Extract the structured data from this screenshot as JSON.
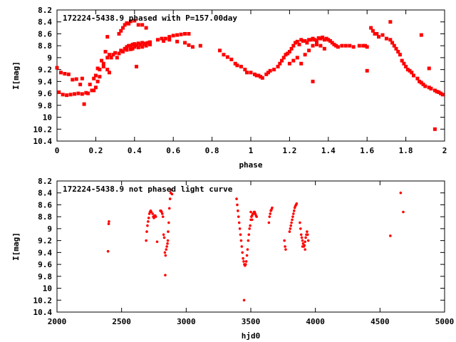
{
  "chart_data": [
    {
      "type": "scatter",
      "title": "172224-5438.9 phased with P=157.00day",
      "xlabel": "phase",
      "ylabel": "I[mag]",
      "xlim": [
        0,
        2
      ],
      "ylim": [
        10.4,
        8.2
      ],
      "y_inverted": true,
      "x_ticks": [
        0,
        0.2,
        0.4,
        0.6,
        0.8,
        1,
        1.2,
        1.4,
        1.6,
        1.8,
        2
      ],
      "x_tick_labels": [
        "0",
        "0.2",
        "0.4",
        "0.6",
        "0.8",
        "1",
        "1.2",
        "1.4",
        "1.6",
        "1.8",
        "2"
      ],
      "y_ticks": [
        8.2,
        8.4,
        8.6,
        8.8,
        9,
        9.2,
        9.4,
        9.6,
        9.8,
        10,
        10.2,
        10.4
      ],
      "y_tick_labels": [
        "8.2",
        "8.4",
        "8.6",
        "8.8",
        "9",
        "9.2",
        "9.4",
        "9.6",
        "9.8",
        "10",
        "10.2",
        "10.4"
      ],
      "marker": "square",
      "color": "#ff0000",
      "grid": false,
      "points": [
        [
          0.0,
          9.17
        ],
        [
          0.01,
          9.58
        ],
        [
          0.02,
          9.25
        ],
        [
          0.03,
          9.62
        ],
        [
          0.04,
          9.27
        ],
        [
          0.05,
          9.63
        ],
        [
          0.06,
          9.28
        ],
        [
          0.07,
          9.62
        ],
        [
          0.08,
          9.37
        ],
        [
          0.09,
          9.61
        ],
        [
          0.1,
          9.36
        ],
        [
          0.11,
          9.6
        ],
        [
          0.12,
          9.45
        ],
        [
          0.13,
          9.35
        ],
        [
          0.13,
          9.61
        ],
        [
          0.14,
          9.78
        ],
        [
          0.15,
          9.59
        ],
        [
          0.16,
          9.6
        ],
        [
          0.17,
          9.45
        ],
        [
          0.18,
          9.55
        ],
        [
          0.19,
          9.55
        ],
        [
          0.2,
          9.5
        ],
        [
          0.21,
          9.4
        ],
        [
          0.22,
          9.32
        ],
        [
          0.19,
          9.35
        ],
        [
          0.2,
          9.3
        ],
        [
          0.21,
          9.18
        ],
        [
          0.22,
          9.2
        ],
        [
          0.23,
          9.05
        ],
        [
          0.24,
          9.1
        ],
        [
          0.25,
          8.9
        ],
        [
          0.26,
          9.0
        ],
        [
          0.27,
          8.95
        ],
        [
          0.28,
          9.0
        ],
        [
          0.29,
          8.95
        ],
        [
          0.3,
          8.92
        ],
        [
          0.31,
          9.0
        ],
        [
          0.32,
          8.93
        ],
        [
          0.33,
          8.88
        ],
        [
          0.34,
          8.9
        ],
        [
          0.35,
          8.85
        ],
        [
          0.36,
          8.82
        ],
        [
          0.37,
          8.8
        ],
        [
          0.38,
          8.8
        ],
        [
          0.39,
          8.78
        ],
        [
          0.4,
          8.77
        ],
        [
          0.41,
          8.79
        ],
        [
          0.42,
          8.76
        ],
        [
          0.43,
          8.78
        ],
        [
          0.44,
          8.75
        ],
        [
          0.45,
          8.77
        ],
        [
          0.46,
          8.76
        ],
        [
          0.47,
          8.75
        ],
        [
          0.48,
          8.74
        ],
        [
          0.39,
          8.85
        ],
        [
          0.4,
          8.82
        ],
        [
          0.42,
          8.83
        ],
        [
          0.44,
          8.82
        ],
        [
          0.46,
          8.8
        ],
        [
          0.48,
          8.78
        ],
        [
          0.36,
          8.87
        ],
        [
          0.38,
          8.86
        ],
        [
          0.26,
          8.65
        ],
        [
          0.32,
          8.6
        ],
        [
          0.33,
          8.55
        ],
        [
          0.34,
          8.5
        ],
        [
          0.35,
          8.45
        ],
        [
          0.36,
          8.42
        ],
        [
          0.37,
          8.43
        ],
        [
          0.38,
          8.39
        ],
        [
          0.4,
          8.38
        ],
        [
          0.42,
          8.45
        ],
        [
          0.44,
          8.45
        ],
        [
          0.46,
          8.5
        ],
        [
          0.41,
          9.15
        ],
        [
          0.26,
          9.2
        ],
        [
          0.27,
          9.25
        ],
        [
          0.24,
          9.15
        ],
        [
          0.52,
          8.7
        ],
        [
          0.54,
          8.68
        ],
        [
          0.56,
          8.68
        ],
        [
          0.58,
          8.65
        ],
        [
          0.6,
          8.63
        ],
        [
          0.62,
          8.62
        ],
        [
          0.64,
          8.61
        ],
        [
          0.66,
          8.6
        ],
        [
          0.68,
          8.6
        ],
        [
          0.55,
          8.72
        ],
        [
          0.58,
          8.7
        ],
        [
          0.62,
          8.73
        ],
        [
          0.66,
          8.75
        ],
        [
          0.68,
          8.79
        ],
        [
          0.7,
          8.82
        ],
        [
          0.74,
          8.8
        ],
        [
          0.84,
          8.88
        ],
        [
          0.86,
          8.95
        ],
        [
          0.88,
          8.99
        ],
        [
          0.9,
          9.03
        ],
        [
          0.92,
          9.1
        ],
        [
          0.93,
          9.13
        ],
        [
          0.95,
          9.15
        ],
        [
          0.97,
          9.2
        ],
        [
          0.98,
          9.25
        ],
        [
          1.0,
          9.25
        ],
        [
          1.02,
          9.28
        ],
        [
          1.03,
          9.3
        ],
        [
          1.04,
          9.3
        ],
        [
          1.05,
          9.32
        ],
        [
          1.06,
          9.34
        ],
        [
          1.08,
          9.28
        ],
        [
          1.09,
          9.25
        ],
        [
          1.1,
          9.22
        ],
        [
          1.12,
          9.2
        ],
        [
          1.14,
          9.15
        ],
        [
          1.15,
          9.1
        ],
        [
          1.16,
          9.05
        ],
        [
          1.17,
          9.0
        ],
        [
          1.18,
          8.95
        ],
        [
          1.19,
          8.93
        ],
        [
          1.2,
          8.9
        ],
        [
          1.21,
          8.85
        ],
        [
          1.22,
          8.8
        ],
        [
          1.23,
          8.75
        ],
        [
          1.24,
          8.73
        ],
        [
          1.25,
          8.78
        ],
        [
          1.26,
          8.7
        ],
        [
          1.27,
          8.72
        ],
        [
          1.28,
          8.72
        ],
        [
          1.29,
          8.75
        ],
        [
          1.3,
          8.7
        ],
        [
          1.31,
          8.7
        ],
        [
          1.32,
          8.68
        ],
        [
          1.33,
          8.7
        ],
        [
          1.34,
          8.72
        ],
        [
          1.35,
          8.67
        ],
        [
          1.36,
          8.68
        ],
        [
          1.37,
          8.66
        ],
        [
          1.38,
          8.7
        ],
        [
          1.39,
          8.68
        ],
        [
          1.4,
          8.7
        ],
        [
          1.41,
          8.72
        ],
        [
          1.42,
          8.75
        ],
        [
          1.43,
          8.78
        ],
        [
          1.44,
          8.8
        ],
        [
          1.45,
          8.82
        ],
        [
          1.47,
          8.8
        ],
        [
          1.49,
          8.8
        ],
        [
          1.51,
          8.8
        ],
        [
          1.53,
          8.82
        ],
        [
          1.56,
          8.8
        ],
        [
          1.58,
          8.8
        ],
        [
          1.59,
          8.8
        ],
        [
          1.6,
          8.82
        ],
        [
          1.62,
          8.5
        ],
        [
          1.63,
          8.55
        ],
        [
          1.64,
          8.6
        ],
        [
          1.65,
          8.6
        ],
        [
          1.66,
          8.65
        ],
        [
          1.68,
          8.62
        ],
        [
          1.7,
          8.68
        ],
        [
          1.72,
          8.7
        ],
        [
          1.73,
          8.75
        ],
        [
          1.74,
          8.8
        ],
        [
          1.75,
          8.85
        ],
        [
          1.76,
          8.9
        ],
        [
          1.77,
          8.95
        ],
        [
          1.78,
          9.05
        ],
        [
          1.79,
          9.1
        ],
        [
          1.8,
          9.15
        ],
        [
          1.81,
          9.2
        ],
        [
          1.82,
          9.22
        ],
        [
          1.83,
          9.25
        ],
        [
          1.84,
          9.3
        ],
        [
          1.86,
          9.35
        ],
        [
          1.87,
          9.4
        ],
        [
          1.88,
          9.42
        ],
        [
          1.89,
          9.45
        ],
        [
          1.9,
          9.48
        ],
        [
          1.92,
          9.5
        ],
        [
          1.93,
          9.52
        ],
        [
          1.95,
          9.55
        ],
        [
          1.96,
          9.57
        ],
        [
          1.97,
          9.58
        ],
        [
          1.98,
          9.6
        ],
        [
          1.99,
          9.62
        ],
        [
          1.72,
          8.4
        ],
        [
          1.88,
          8.62
        ],
        [
          1.92,
          9.18
        ],
        [
          1.95,
          10.2
        ],
        [
          1.6,
          9.22
        ],
        [
          1.32,
          9.4
        ],
        [
          1.2,
          9.1
        ],
        [
          1.22,
          9.05
        ],
        [
          1.24,
          9.0
        ],
        [
          1.26,
          9.1
        ],
        [
          1.28,
          8.95
        ],
        [
          1.3,
          8.88
        ],
        [
          1.32,
          8.8
        ],
        [
          1.34,
          8.78
        ],
        [
          1.36,
          8.8
        ],
        [
          1.38,
          8.85
        ]
      ]
    },
    {
      "type": "scatter",
      "title": "172224-5438.9 not phased light curve",
      "xlabel": "hjd0",
      "ylabel": "I[mag]",
      "xlim": [
        2000,
        5000
      ],
      "ylim": [
        10.4,
        8.2
      ],
      "y_inverted": true,
      "x_ticks": [
        2000,
        2500,
        3000,
        3500,
        4000,
        4500,
        5000
      ],
      "x_tick_labels": [
        "2000",
        "2500",
        "3000",
        "3500",
        "4000",
        "4500",
        "5000"
      ],
      "y_ticks": [
        8.2,
        8.4,
        8.6,
        8.8,
        9,
        9.2,
        9.4,
        9.6,
        9.8,
        10,
        10.2,
        10.4
      ],
      "y_tick_labels": [
        "8.2",
        "8.4",
        "8.6",
        "8.8",
        "9",
        "9.2",
        "9.4",
        "9.6",
        "9.8",
        "10",
        "10.2",
        "10.4"
      ],
      "marker": "dot",
      "color": "#ff0000",
      "grid": false,
      "points": [
        [
          2395,
          9.38
        ],
        [
          2400,
          8.92
        ],
        [
          2402,
          8.88
        ],
        [
          2690,
          9.2
        ],
        [
          2695,
          9.05
        ],
        [
          2700,
          8.95
        ],
        [
          2705,
          8.88
        ],
        [
          2710,
          8.82
        ],
        [
          2715,
          8.75
        ],
        [
          2720,
          8.72
        ],
        [
          2725,
          8.7
        ],
        [
          2730,
          8.72
        ],
        [
          2740,
          8.75
        ],
        [
          2745,
          8.8
        ],
        [
          2750,
          8.82
        ],
        [
          2755,
          8.78
        ],
        [
          2760,
          8.78
        ],
        [
          2765,
          8.8
        ],
        [
          2775,
          9.22
        ],
        [
          2800,
          8.7
        ],
        [
          2805,
          8.7
        ],
        [
          2810,
          8.72
        ],
        [
          2815,
          8.75
        ],
        [
          2820,
          8.8
        ],
        [
          2825,
          9.1
        ],
        [
          2830,
          9.15
        ],
        [
          2835,
          9.4
        ],
        [
          2840,
          9.45
        ],
        [
          2845,
          9.35
        ],
        [
          2850,
          9.3
        ],
        [
          2855,
          9.25
        ],
        [
          2860,
          9.05
        ],
        [
          2865,
          8.9
        ],
        [
          2870,
          8.66
        ],
        [
          2875,
          8.5
        ],
        [
          2880,
          8.4
        ],
        [
          2885,
          8.35
        ],
        [
          2890,
          8.42
        ],
        [
          2838,
          9.78
        ],
        [
          2858,
          9.2
        ],
        [
          3390,
          8.5
        ],
        [
          3395,
          8.6
        ],
        [
          3400,
          8.7
        ],
        [
          3405,
          8.8
        ],
        [
          3410,
          8.9
        ],
        [
          3415,
          9.0
        ],
        [
          3420,
          9.1
        ],
        [
          3425,
          9.2
        ],
        [
          3430,
          9.3
        ],
        [
          3435,
          9.4
        ],
        [
          3440,
          9.5
        ],
        [
          3445,
          9.55
        ],
        [
          3450,
          9.6
        ],
        [
          3455,
          9.62
        ],
        [
          3460,
          9.6
        ],
        [
          3465,
          9.55
        ],
        [
          3470,
          9.45
        ],
        [
          3475,
          9.35
        ],
        [
          3480,
          9.2
        ],
        [
          3485,
          9.1
        ],
        [
          3490,
          9.0
        ],
        [
          3495,
          8.95
        ],
        [
          3500,
          8.85
        ],
        [
          3505,
          8.8
        ],
        [
          3510,
          8.78
        ],
        [
          3515,
          8.75
        ],
        [
          3520,
          8.75
        ],
        [
          3525,
          8.72
        ],
        [
          3530,
          8.72
        ],
        [
          3535,
          8.75
        ],
        [
          3540,
          8.78
        ],
        [
          3545,
          8.8
        ],
        [
          3448,
          10.2
        ],
        [
          3500,
          8.72
        ],
        [
          3510,
          8.85
        ],
        [
          3640,
          8.9
        ],
        [
          3645,
          8.8
        ],
        [
          3650,
          8.75
        ],
        [
          3655,
          8.7
        ],
        [
          3660,
          8.68
        ],
        [
          3665,
          8.65
        ],
        [
          3760,
          9.2
        ],
        [
          3765,
          9.3
        ],
        [
          3770,
          9.35
        ],
        [
          3800,
          9.05
        ],
        [
          3805,
          9.0
        ],
        [
          3810,
          8.95
        ],
        [
          3815,
          8.9
        ],
        [
          3820,
          8.85
        ],
        [
          3825,
          8.8
        ],
        [
          3830,
          8.75
        ],
        [
          3835,
          8.7
        ],
        [
          3840,
          8.65
        ],
        [
          3845,
          8.62
        ],
        [
          3850,
          8.6
        ],
        [
          3855,
          8.58
        ],
        [
          3880,
          8.9
        ],
        [
          3885,
          9.0
        ],
        [
          3890,
          9.1
        ],
        [
          3895,
          9.15
        ],
        [
          3900,
          9.2
        ],
        [
          3905,
          9.25
        ],
        [
          3910,
          9.3
        ],
        [
          3915,
          9.28
        ],
        [
          3920,
          9.22
        ],
        [
          3925,
          9.15
        ],
        [
          3930,
          9.1
        ],
        [
          3935,
          9.05
        ],
        [
          3940,
          9.1
        ],
        [
          3945,
          9.2
        ],
        [
          3900,
          9.3
        ],
        [
          3920,
          9.35
        ],
        [
          4580,
          9.12
        ],
        [
          4660,
          8.4
        ],
        [
          4680,
          8.72
        ]
      ]
    }
  ]
}
